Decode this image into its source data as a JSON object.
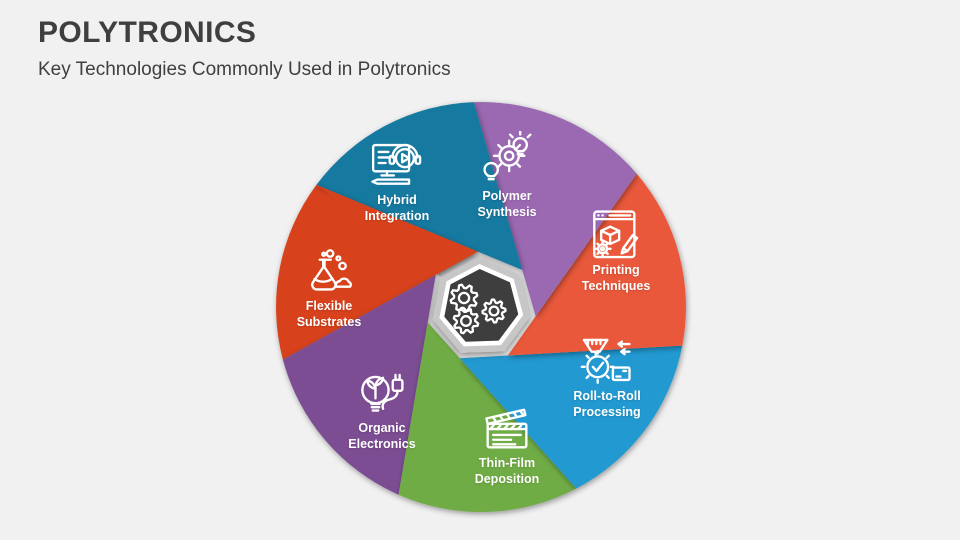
{
  "slide": {
    "title": "POLYTRONICS",
    "subtitle": "Key Technologies Commonly Used in Polytronics"
  },
  "colors": {
    "background": "#F1F1F2",
    "heading_text": "#3F3F3F",
    "label_text": "#FFFFFF",
    "icon_stroke": "#FFFFFF",
    "center_fill": "#3E3E3E",
    "center_ring_outer": "#C7C7C7",
    "center_ring_inner": "#FFFFFF"
  },
  "wheel": {
    "center_icon": "gears-icon",
    "segments": [
      {
        "label": "Hybrid Integration",
        "lines": [
          "Hybrid",
          "Integration"
        ],
        "color": "#1679A0",
        "icon": "monitor-multimedia-icon"
      },
      {
        "label": "Polymer Synthesis",
        "lines": [
          "Polymer",
          "Synthesis"
        ],
        "color": "#9B69B1",
        "icon": "gear-lightbulbs-icon"
      },
      {
        "label": "Printing Techniques",
        "lines": [
          "Printing",
          "Techniques"
        ],
        "color": "#E9583B",
        "icon": "print-window-pencil-icon"
      },
      {
        "label": "Roll-to-Roll Processing",
        "lines": [
          "Roll-to-Roll",
          "Processing"
        ],
        "color": "#2099D1",
        "icon": "funnel-check-icon"
      },
      {
        "label": "Thin-Film Deposition",
        "lines": [
          "Thin-Film",
          "Deposition"
        ],
        "color": "#6FAC45",
        "icon": "clapperboard-icon"
      },
      {
        "label": "Organic Electronics",
        "lines": [
          "Organic",
          "Electronics"
        ],
        "color": "#7B4E93",
        "icon": "bulb-plant-plug-icon"
      },
      {
        "label": "Flexible Substrates",
        "lines": [
          "Flexible",
          "Substrates"
        ],
        "color": "#D7431F",
        "icon": "flask-icon"
      }
    ]
  }
}
